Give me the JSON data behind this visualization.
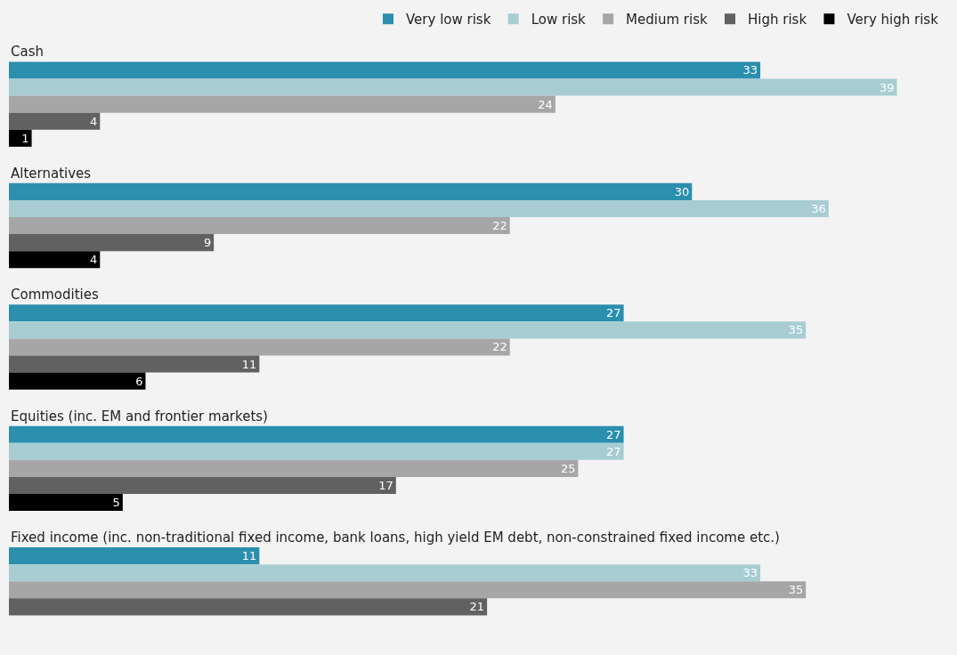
{
  "chart_data": {
    "type": "bar",
    "orientation": "horizontal",
    "data_labels": true,
    "legend": "top right",
    "grid": false,
    "categories": [
      "Cash",
      "Alternatives",
      "Commodities",
      "Equities (inc. EM and frontier markets)",
      "Fixed income (inc. non-traditional fixed income, bank loans, high yield EM debt, non-constrained fixed income etc.)"
    ],
    "series": [
      {
        "name": "Very low risk",
        "color": "#2b8fae",
        "values": [
          33,
          30,
          27,
          27,
          11
        ]
      },
      {
        "name": "Low risk",
        "color": "#a7cdd3",
        "values": [
          39,
          36,
          35,
          27,
          33
        ]
      },
      {
        "name": "Medium risk",
        "color": "#a6a6a6",
        "values": [
          24,
          22,
          22,
          25,
          35
        ]
      },
      {
        "name": "High risk",
        "color": "#616161",
        "values": [
          4,
          9,
          11,
          17,
          21
        ]
      },
      {
        "name": "Very high risk",
        "color": "#000000",
        "values": [
          1,
          4,
          6,
          5,
          null
        ]
      }
    ]
  }
}
